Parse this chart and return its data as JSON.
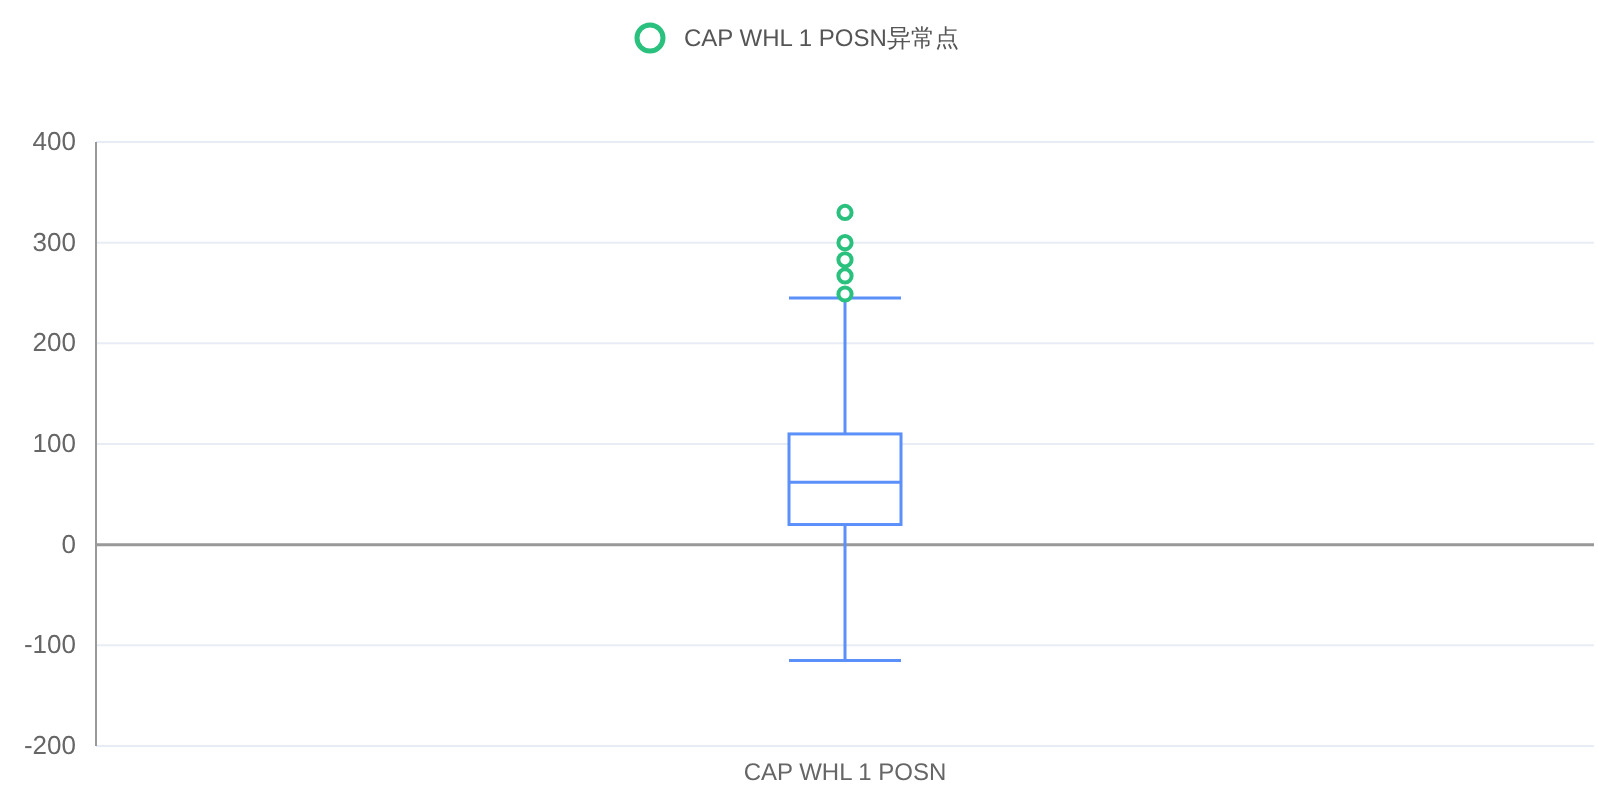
{
  "chart_data": {
    "type": "box",
    "categories": [
      "CAP WHL 1 POSN"
    ],
    "ylim": [
      -200,
      400
    ],
    "yticks": [
      -200,
      -100,
      0,
      100,
      200,
      300,
      400
    ],
    "grid": "y",
    "legend": "top",
    "marker": "circle",
    "series": [
      {
        "color": "#5b8ff9",
        "boxes": [
          {
            "low": -115,
            "q1": 20,
            "median": 62,
            "q3": 110,
            "high": 245
          }
        ]
      },
      {
        "type": "scatter",
        "name": "CAP WHL 1 POSN异常点",
        "color": "#2ac17e",
        "x": [
          "CAP WHL 1 POSN",
          "CAP WHL 1 POSN",
          "CAP WHL 1 POSN",
          "CAP WHL 1 POSN",
          "CAP WHL 1 POSN"
        ],
        "values": [
          330,
          300,
          283,
          267,
          249
        ]
      }
    ]
  }
}
